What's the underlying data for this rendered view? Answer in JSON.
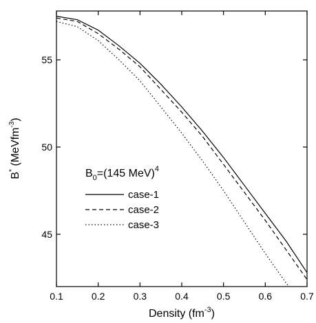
{
  "chart_data": {
    "type": "line",
    "xlabel": "Density (fm",
    "xlabel_sup": "-3",
    "xlabel_end": ")",
    "ylabel": "B",
    "ylabel_sup1": "*",
    "ylabel_mid": " (MeVfm",
    "ylabel_sup2": "-3",
    "ylabel_end": ")",
    "xlim": [
      0.1,
      0.7
    ],
    "ylim": [
      42.0,
      57.8
    ],
    "x_ticks": [
      0.1,
      0.2,
      0.3,
      0.4,
      0.5,
      0.6,
      0.7
    ],
    "x_tick_labels": [
      "0.1",
      "0.2",
      "0.3",
      "0.4",
      "0.5",
      "0.6",
      "0.7"
    ],
    "y_ticks": [
      45,
      50,
      55
    ],
    "y_tick_labels": [
      "45",
      "50",
      "55"
    ],
    "legend_title": {
      "main": "B",
      "sub": "0",
      "rest": "=(145 MeV)",
      "sup": "4"
    },
    "legend_position": "center-left",
    "series": [
      {
        "name": "case-1",
        "style": "solid",
        "points": [
          [
            0.1,
            57.5
          ],
          [
            0.15,
            57.3
          ],
          [
            0.2,
            56.7
          ],
          [
            0.25,
            55.8
          ],
          [
            0.3,
            54.8
          ],
          [
            0.35,
            53.6
          ],
          [
            0.4,
            52.3
          ],
          [
            0.45,
            50.9
          ],
          [
            0.5,
            49.4
          ],
          [
            0.55,
            47.8
          ],
          [
            0.6,
            46.2
          ],
          [
            0.65,
            44.6
          ],
          [
            0.7,
            42.8
          ]
        ]
      },
      {
        "name": "case-2",
        "style": "dashed",
        "points": [
          [
            0.1,
            57.4
          ],
          [
            0.15,
            57.2
          ],
          [
            0.2,
            56.5
          ],
          [
            0.25,
            55.6
          ],
          [
            0.3,
            54.6
          ],
          [
            0.35,
            53.3
          ],
          [
            0.4,
            52.0
          ],
          [
            0.45,
            50.6
          ],
          [
            0.5,
            49.0
          ],
          [
            0.55,
            47.4
          ],
          [
            0.6,
            45.8
          ],
          [
            0.65,
            44.1
          ],
          [
            0.7,
            42.4
          ]
        ]
      },
      {
        "name": "case-3",
        "style": "dotted",
        "points": [
          [
            0.1,
            57.2
          ],
          [
            0.15,
            56.9
          ],
          [
            0.2,
            56.1
          ],
          [
            0.25,
            55.0
          ],
          [
            0.3,
            53.8
          ],
          [
            0.35,
            52.3
          ],
          [
            0.4,
            50.8
          ],
          [
            0.45,
            49.2
          ],
          [
            0.5,
            47.5
          ],
          [
            0.55,
            45.7
          ],
          [
            0.6,
            43.9
          ],
          [
            0.65,
            42.2
          ],
          [
            0.66,
            41.9
          ]
        ]
      }
    ],
    "grid": false,
    "line_color": "#000000"
  }
}
